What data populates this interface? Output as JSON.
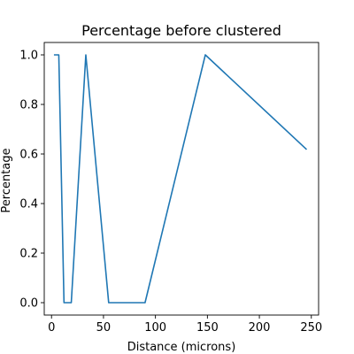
{
  "chart_data": {
    "type": "line",
    "title": "Percentage before clustered",
    "xlabel": "Distance (microns)",
    "ylabel": "Percentage",
    "xlim": [
      -7,
      257
    ],
    "ylim": [
      -0.05,
      1.05
    ],
    "xticks": [
      0,
      50,
      100,
      150,
      200,
      250
    ],
    "yticks": [
      0.0,
      0.2,
      0.4,
      0.6,
      0.8,
      1.0
    ],
    "xtick_labels": [
      "0",
      "50",
      "100",
      "150",
      "200",
      "250"
    ],
    "ytick_labels": [
      "0.0",
      "0.2",
      "0.4",
      "0.6",
      "0.8",
      "1.0"
    ],
    "grid": false,
    "series": [
      {
        "color": "#1f77b4",
        "x": [
          3,
          7,
          12,
          19,
          33,
          55,
          90,
          148,
          245
        ],
        "y": [
          1.0,
          1.0,
          0.0,
          0.0,
          1.0,
          0.0,
          0.0,
          1.0,
          0.62
        ]
      }
    ]
  }
}
